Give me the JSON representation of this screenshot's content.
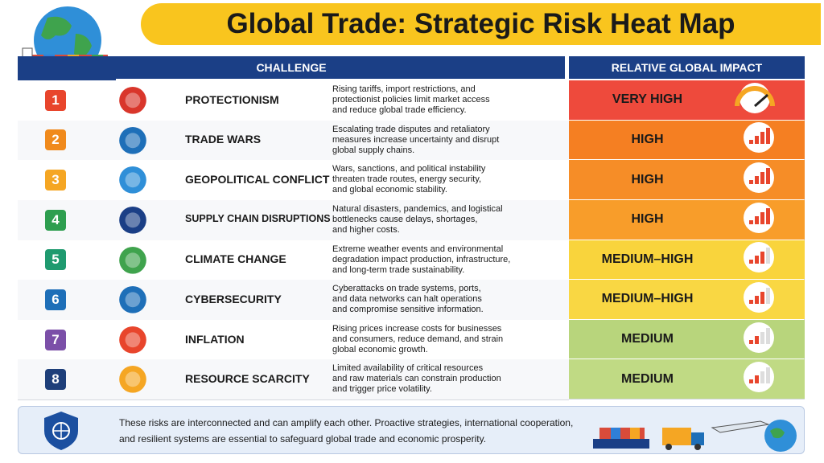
{
  "title": "Global Trade: Strategic Risk Heat Map",
  "table": {
    "header": {
      "challenge": "CHALLENGE",
      "impact": "RELATIVE GLOBAL IMPACT"
    },
    "rows": [
      {
        "number": "1",
        "name": "PROTECTIONISM",
        "description": [
          "Rising tariffs, import restrictions, and",
          "protectionist policies limit market access",
          "and reduce global trade efficiency."
        ],
        "impact": "VERY HIGH"
      },
      {
        "number": "2",
        "name": "TRADE WARS",
        "description": [
          "Escalating trade disputes and retaliatory",
          "measures increase uncertainty and disrupt",
          "global supply chains."
        ],
        "impact": "HIGH"
      },
      {
        "number": "3",
        "name": "GEOPOLITICAL CONFLICT",
        "description": [
          "Wars, sanctions, and political instability",
          "threaten trade routes, energy security,",
          "and global economic stability."
        ],
        "impact": "HIGH"
      },
      {
        "number": "4",
        "name": "SUPPLY CHAIN DISRUPTIONS",
        "description": [
          "Natural disasters, pandemics, and logistical",
          "bottlenecks cause delays, shortages,",
          "and higher costs."
        ],
        "impact": "HIGH"
      },
      {
        "number": "5",
        "name": "CLIMATE CHANGE",
        "description": [
          "Extreme weather events and environmental",
          "degradation impact production, infrastructure,",
          "and long-term trade sustainability."
        ],
        "impact": "MEDIUM–HIGH"
      },
      {
        "number": "6",
        "name": "CYBERSECURITY",
        "description": [
          "Cyberattacks on trade systems, ports,",
          "and data networks can halt operations",
          "and compromise sensitive information."
        ],
        "impact": "MEDIUM–HIGH"
      },
      {
        "number": "7",
        "name": "INFLATION",
        "description": [
          "Rising prices increase costs for businesses",
          "and consumers, reduce demand, and strain",
          "global economic growth."
        ],
        "impact": "MEDIUM"
      },
      {
        "number": "8",
        "name": "RESOURCE SCARCITY",
        "description": [
          "Limited availability of critical resources",
          "and raw materials can constrain production",
          "and trigger price volatility."
        ],
        "impact": "MEDIUM"
      }
    ]
  },
  "footer": [
    "These risks are interconnected and can amplify each other. Proactive strategies, international cooperation,",
    "and resilient systems are essential to safeguard global trade and economic prosperity."
  ]
}
